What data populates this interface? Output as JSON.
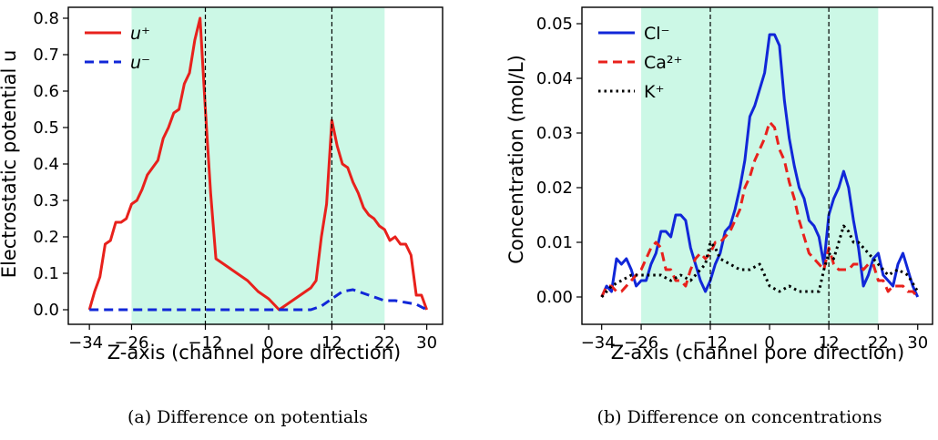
{
  "chart_data": [
    {
      "type": "line",
      "caption": "(a) Difference on potentials",
      "xlabel": "Z-axis (channel pore direction)",
      "ylabel": "Electrostatic potential u",
      "xlim": [
        -38,
        33
      ],
      "ylim": [
        -0.04,
        0.83
      ],
      "xticks": [
        -34,
        -26,
        -12,
        0,
        12,
        22,
        30
      ],
      "yticks": [
        0.0,
        0.1,
        0.2,
        0.3,
        0.4,
        0.5,
        0.6,
        0.7,
        0.8
      ],
      "ytick_labels": [
        "0.0",
        "0.1",
        "0.2",
        "0.3",
        "0.4",
        "0.5",
        "0.6",
        "0.7",
        "0.8"
      ],
      "shaded_region": [
        -26,
        22
      ],
      "shaded_color": "#ccf8e6",
      "vlines": [
        -12,
        12
      ],
      "legend_position": "upper-left",
      "series": [
        {
          "name": "u⁺",
          "color": "#e8211c",
          "style": "solid",
          "x": [
            -34,
            -33,
            -32,
            -31,
            -30,
            -29,
            -28,
            -27,
            -26,
            -25,
            -24,
            -23,
            -22,
            -21,
            -20,
            -19,
            -18,
            -17,
            -16,
            -15,
            -14,
            -13,
            -12,
            -11,
            -10,
            -9,
            -8,
            -6,
            -4,
            -2,
            0,
            2,
            3,
            4,
            6,
            8,
            9,
            10,
            11,
            12,
            13,
            14,
            15,
            16,
            17,
            18,
            19,
            20,
            21,
            22,
            23,
            24,
            25,
            26,
            27,
            28,
            29,
            30
          ],
          "y": [
            0.0,
            0.05,
            0.09,
            0.18,
            0.19,
            0.24,
            0.24,
            0.25,
            0.29,
            0.3,
            0.33,
            0.37,
            0.39,
            0.41,
            0.47,
            0.5,
            0.54,
            0.55,
            0.62,
            0.65,
            0.74,
            0.8,
            0.55,
            0.32,
            0.14,
            0.13,
            0.12,
            0.1,
            0.08,
            0.05,
            0.03,
            0.0,
            0.01,
            0.02,
            0.04,
            0.06,
            0.08,
            0.2,
            0.29,
            0.52,
            0.45,
            0.4,
            0.39,
            0.35,
            0.32,
            0.28,
            0.26,
            0.25,
            0.23,
            0.22,
            0.19,
            0.2,
            0.18,
            0.18,
            0.15,
            0.04,
            0.04,
            0.0
          ]
        },
        {
          "name": "u⁻",
          "color": "#1127d8",
          "style": "dashed",
          "x": [
            -34,
            -20,
            -10,
            0,
            8,
            10,
            12,
            14,
            16,
            18,
            20,
            22,
            24,
            26,
            28,
            30
          ],
          "y": [
            0.0,
            0.0,
            0.0,
            0.0,
            0.0,
            0.01,
            0.03,
            0.05,
            0.055,
            0.045,
            0.035,
            0.025,
            0.025,
            0.02,
            0.015,
            0.0
          ]
        }
      ]
    },
    {
      "type": "line",
      "caption": "(b) Difference on concentrations",
      "xlabel": "Z-axis (channel pore direction)",
      "ylabel": "Concentration (mol/L)",
      "xlim": [
        -38,
        33
      ],
      "ylim": [
        -0.005,
        0.053
      ],
      "xticks": [
        -34,
        -26,
        -12,
        0,
        12,
        22,
        30
      ],
      "yticks": [
        0.0,
        0.01,
        0.02,
        0.03,
        0.04,
        0.05
      ],
      "ytick_labels": [
        "0.00",
        "0.01",
        "0.02",
        "0.03",
        "0.04",
        "0.05"
      ],
      "shaded_region": [
        -26,
        22
      ],
      "shaded_color": "#ccf8e6",
      "vlines": [
        -12,
        12
      ],
      "legend_position": "upper-left",
      "series": [
        {
          "name": "Cl⁻",
          "color": "#1127d8",
          "style": "solid",
          "x": [
            -34,
            -33,
            -32,
            -31,
            -30,
            -29,
            -28,
            -27,
            -26,
            -25,
            -24,
            -23,
            -22,
            -21,
            -20,
            -19,
            -18,
            -17,
            -16,
            -15,
            -14,
            -13,
            -12,
            -11,
            -10,
            -9,
            -8,
            -7,
            -6,
            -5,
            -4,
            -3,
            -2,
            -1,
            0,
            1,
            2,
            3,
            4,
            5,
            6,
            7,
            8,
            9,
            10,
            11,
            12,
            13,
            14,
            15,
            16,
            17,
            18,
            19,
            20,
            21,
            22,
            23,
            24,
            25,
            26,
            27,
            28,
            29,
            30
          ],
          "y": [
            0.0,
            0.002,
            0.001,
            0.007,
            0.006,
            0.007,
            0.005,
            0.002,
            0.003,
            0.003,
            0.006,
            0.008,
            0.012,
            0.012,
            0.011,
            0.015,
            0.015,
            0.014,
            0.009,
            0.006,
            0.003,
            0.001,
            0.003,
            0.006,
            0.008,
            0.012,
            0.013,
            0.016,
            0.02,
            0.025,
            0.033,
            0.035,
            0.038,
            0.041,
            0.048,
            0.048,
            0.046,
            0.036,
            0.029,
            0.024,
            0.02,
            0.018,
            0.014,
            0.013,
            0.011,
            0.006,
            0.015,
            0.018,
            0.02,
            0.023,
            0.02,
            0.014,
            0.009,
            0.002,
            0.004,
            0.007,
            0.008,
            0.004,
            0.003,
            0.002,
            0.006,
            0.008,
            0.005,
            0.002,
            0.0
          ]
        },
        {
          "name": "Ca²⁺",
          "color": "#e8211c",
          "style": "dashed",
          "x": [
            -34,
            -33,
            -32,
            -31,
            -30,
            -29,
            -28,
            -27,
            -26,
            -25,
            -24,
            -23,
            -22,
            -21,
            -20,
            -19,
            -18,
            -17,
            -16,
            -15,
            -14,
            -13,
            -12,
            -11,
            -10,
            -9,
            -8,
            -7,
            -6,
            -5,
            -4,
            -3,
            -2,
            -1,
            0,
            1,
            2,
            3,
            4,
            5,
            6,
            7,
            8,
            9,
            10,
            11,
            12,
            13,
            14,
            15,
            16,
            17,
            18,
            19,
            20,
            21,
            22,
            23,
            24,
            25,
            26,
            27,
            28,
            29,
            30
          ],
          "y": [
            0.0,
            0.002,
            0.002,
            0.001,
            0.001,
            0.002,
            0.003,
            0.004,
            0.005,
            0.007,
            0.009,
            0.01,
            0.009,
            0.005,
            0.005,
            0.003,
            0.003,
            0.002,
            0.005,
            0.007,
            0.008,
            0.007,
            0.008,
            0.01,
            0.01,
            0.011,
            0.012,
            0.014,
            0.016,
            0.02,
            0.022,
            0.025,
            0.027,
            0.029,
            0.032,
            0.031,
            0.027,
            0.025,
            0.021,
            0.018,
            0.014,
            0.011,
            0.008,
            0.007,
            0.006,
            0.005,
            0.009,
            0.006,
            0.005,
            0.005,
            0.005,
            0.006,
            0.006,
            0.005,
            0.006,
            0.006,
            0.003,
            0.003,
            0.001,
            0.002,
            0.002,
            0.002,
            0.001,
            0.001,
            0.0
          ]
        },
        {
          "name": "K⁺",
          "color": "#000000",
          "style": "dotted",
          "x": [
            -34,
            -32,
            -30,
            -28,
            -26,
            -24,
            -22,
            -20,
            -18,
            -16,
            -14,
            -13,
            -12,
            -11,
            -10,
            -8,
            -6,
            -4,
            -2,
            -1,
            0,
            2,
            4,
            6,
            8,
            10,
            11,
            12,
            13,
            14,
            15,
            16,
            17,
            18,
            19,
            20,
            21,
            22,
            24,
            26,
            28,
            30
          ],
          "y": [
            0.0,
            0.002,
            0.003,
            0.004,
            0.004,
            0.004,
            0.004,
            0.003,
            0.004,
            0.003,
            0.005,
            0.006,
            0.01,
            0.009,
            0.007,
            0.006,
            0.005,
            0.005,
            0.006,
            0.004,
            0.002,
            0.001,
            0.002,
            0.001,
            0.001,
            0.001,
            0.005,
            0.008,
            0.007,
            0.01,
            0.013,
            0.012,
            0.01,
            0.01,
            0.009,
            0.008,
            0.007,
            0.006,
            0.004,
            0.005,
            0.004,
            0.001
          ]
        }
      ]
    }
  ]
}
